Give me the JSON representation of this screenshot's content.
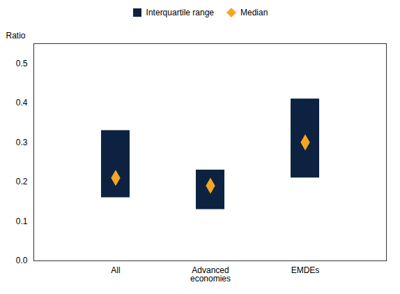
{
  "chart_data": {
    "type": "range_bar",
    "categories": [
      "All",
      "Advanced\neconomies",
      "EMDEs"
    ],
    "series": [
      {
        "name": "Interquartile range",
        "type": "range_bar",
        "color": "#0d2240",
        "low": [
          0.16,
          0.13,
          0.21
        ],
        "high": [
          0.33,
          0.23,
          0.41
        ]
      },
      {
        "name": "Median",
        "type": "scatter",
        "color": "#f5a623",
        "marker": "diamond",
        "values": [
          0.21,
          0.19,
          0.3
        ]
      }
    ],
    "ylabel": "Ratio",
    "ylim": [
      0.0,
      0.55
    ],
    "yticks": [
      {
        "value": 0.0,
        "label": "0.0"
      },
      0.1,
      0.2,
      0.3,
      0.4,
      0.5
    ],
    "grid": false,
    "legend": "top"
  }
}
